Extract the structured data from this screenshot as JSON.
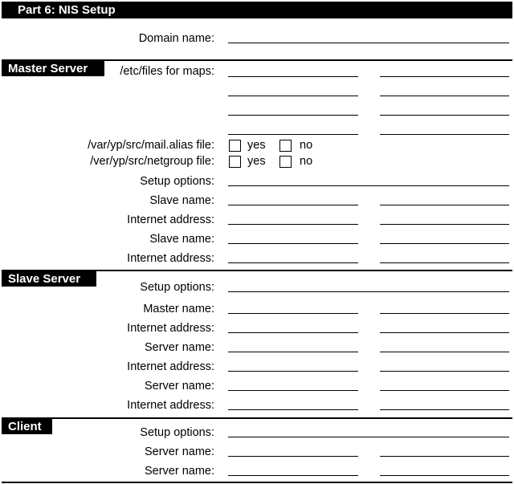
{
  "title": "Part 6:  NIS Setup",
  "domain_label": "Domain name:",
  "sections": {
    "master": {
      "tag": "Master Server",
      "maps_label": "/etc/files for maps:",
      "mail_alias_label": "/var/yp/src/mail.alias file:",
      "netgroup_label": "/ver/yp/src/netgroup file:",
      "yes": "yes",
      "no": "no",
      "rows": [
        "Setup options:",
        "Slave name:",
        "Internet address:",
        "Slave name:",
        "Internet address:"
      ]
    },
    "slave": {
      "tag": "Slave Server",
      "rows": [
        "Setup options:",
        "Master name:",
        "Internet address:",
        "Server name:",
        "Internet address:",
        "Server name:",
        "Internet address:"
      ]
    },
    "client": {
      "tag": "Client",
      "rows": [
        "Setup options:",
        "Server name:",
        "Server name:"
      ]
    }
  }
}
